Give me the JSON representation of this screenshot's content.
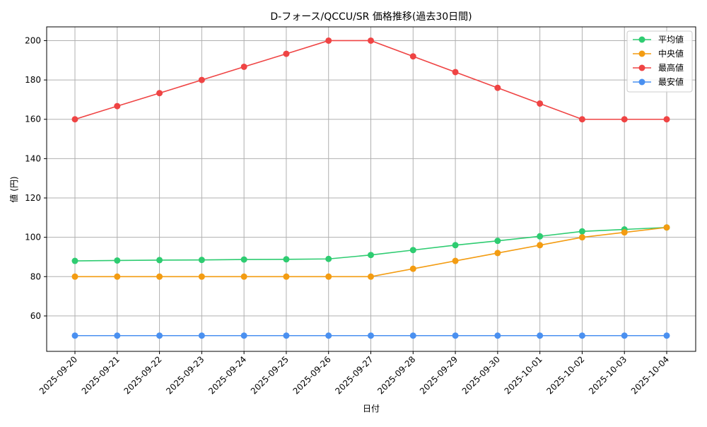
{
  "chart_data": {
    "type": "line",
    "title": "D-フォース/QCCU/SR 価格推移(過去30日間)",
    "xlabel": "日付",
    "ylabel": "値 (円)",
    "ylim": [
      42,
      207
    ],
    "yticks": [
      60,
      80,
      100,
      120,
      140,
      160,
      180,
      200
    ],
    "grid": true,
    "legend_position": "top-right",
    "categories": [
      "2025-09-20",
      "2025-09-21",
      "2025-09-22",
      "2025-09-23",
      "2025-09-24",
      "2025-09-25",
      "2025-09-26",
      "2025-09-27",
      "2025-09-28",
      "2025-09-29",
      "2025-09-30",
      "2025-10-01",
      "2025-10-02",
      "2025-10-03",
      "2025-10-04"
    ],
    "series": [
      {
        "name": "平均値",
        "color": "#2ecc71",
        "values": [
          88,
          88.2,
          88.4,
          88.5,
          88.7,
          88.8,
          89,
          91,
          93.5,
          96,
          98.2,
          100.5,
          103,
          104,
          105
        ]
      },
      {
        "name": "中央値",
        "color": "#f39c12",
        "values": [
          80,
          80,
          80,
          80,
          80,
          80,
          80,
          80,
          84,
          88,
          92,
          96,
          100,
          102.5,
          105
        ]
      },
      {
        "name": "最高値",
        "color": "#ef4444",
        "values": [
          160,
          166.7,
          173.3,
          180,
          186.7,
          193.3,
          200,
          200,
          192,
          184,
          176,
          168,
          160,
          160,
          160
        ]
      },
      {
        "name": "最安値",
        "color": "#4a90f0",
        "values": [
          50,
          50,
          50,
          50,
          50,
          50,
          50,
          50,
          50,
          50,
          50,
          50,
          50,
          50,
          50
        ]
      }
    ]
  }
}
